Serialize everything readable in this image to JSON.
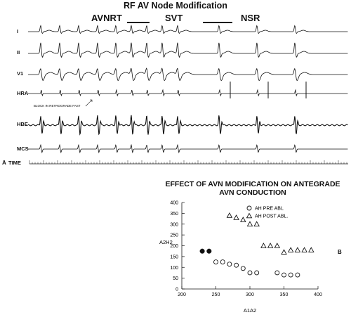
{
  "header": {
    "title": "RF AV Node Modification",
    "segments": [
      "AVNRT",
      "SVT",
      "NSR"
    ]
  },
  "traces": {
    "leads": [
      "I",
      "II",
      "V1",
      "HRA",
      "HBE",
      "MCS"
    ],
    "time_label": "TIME",
    "annotation": "BLOCK IN RETROGRADE FAST"
  },
  "panels": {
    "a": "A",
    "b": "B"
  },
  "chart_data": {
    "type": "scatter",
    "title": "EFFECT OF AVN MODIFICATION ON ANTEGRADE AVN CONDUCTION",
    "title_lines": [
      "EFFECT OF AVN MODIFICATION ON ANTEGRADE",
      "AVN CONDUCTION"
    ],
    "xlabel": "A1A2",
    "ylabel": "A2H2",
    "xlim": [
      200,
      400
    ],
    "ylim": [
      0,
      400
    ],
    "xticks": [
      200,
      250,
      300,
      350,
      400
    ],
    "yticks": [
      0,
      50,
      100,
      150,
      200,
      250,
      300,
      350,
      400
    ],
    "grid": false,
    "legend_position": "top-right",
    "series": [
      {
        "name": "AH PRE ABL",
        "marker": "circle-open",
        "x": [
          250,
          260,
          270,
          280,
          290,
          300,
          310,
          340,
          350,
          360,
          370
        ],
        "y": [
          125,
          125,
          115,
          110,
          95,
          75,
          75,
          75,
          65,
          65,
          65
        ]
      },
      {
        "name": "",
        "marker": "circle-filled",
        "x": [
          230,
          240
        ],
        "y": [
          175,
          175
        ]
      },
      {
        "name": "AH POST ABL.",
        "marker": "triangle-open",
        "x": [
          270,
          280,
          290,
          300,
          310,
          320,
          330,
          340,
          350,
          360,
          370,
          380,
          390
        ],
        "y": [
          340,
          330,
          320,
          300,
          300,
          200,
          200,
          200,
          170,
          180,
          180,
          180,
          180
        ]
      }
    ]
  }
}
